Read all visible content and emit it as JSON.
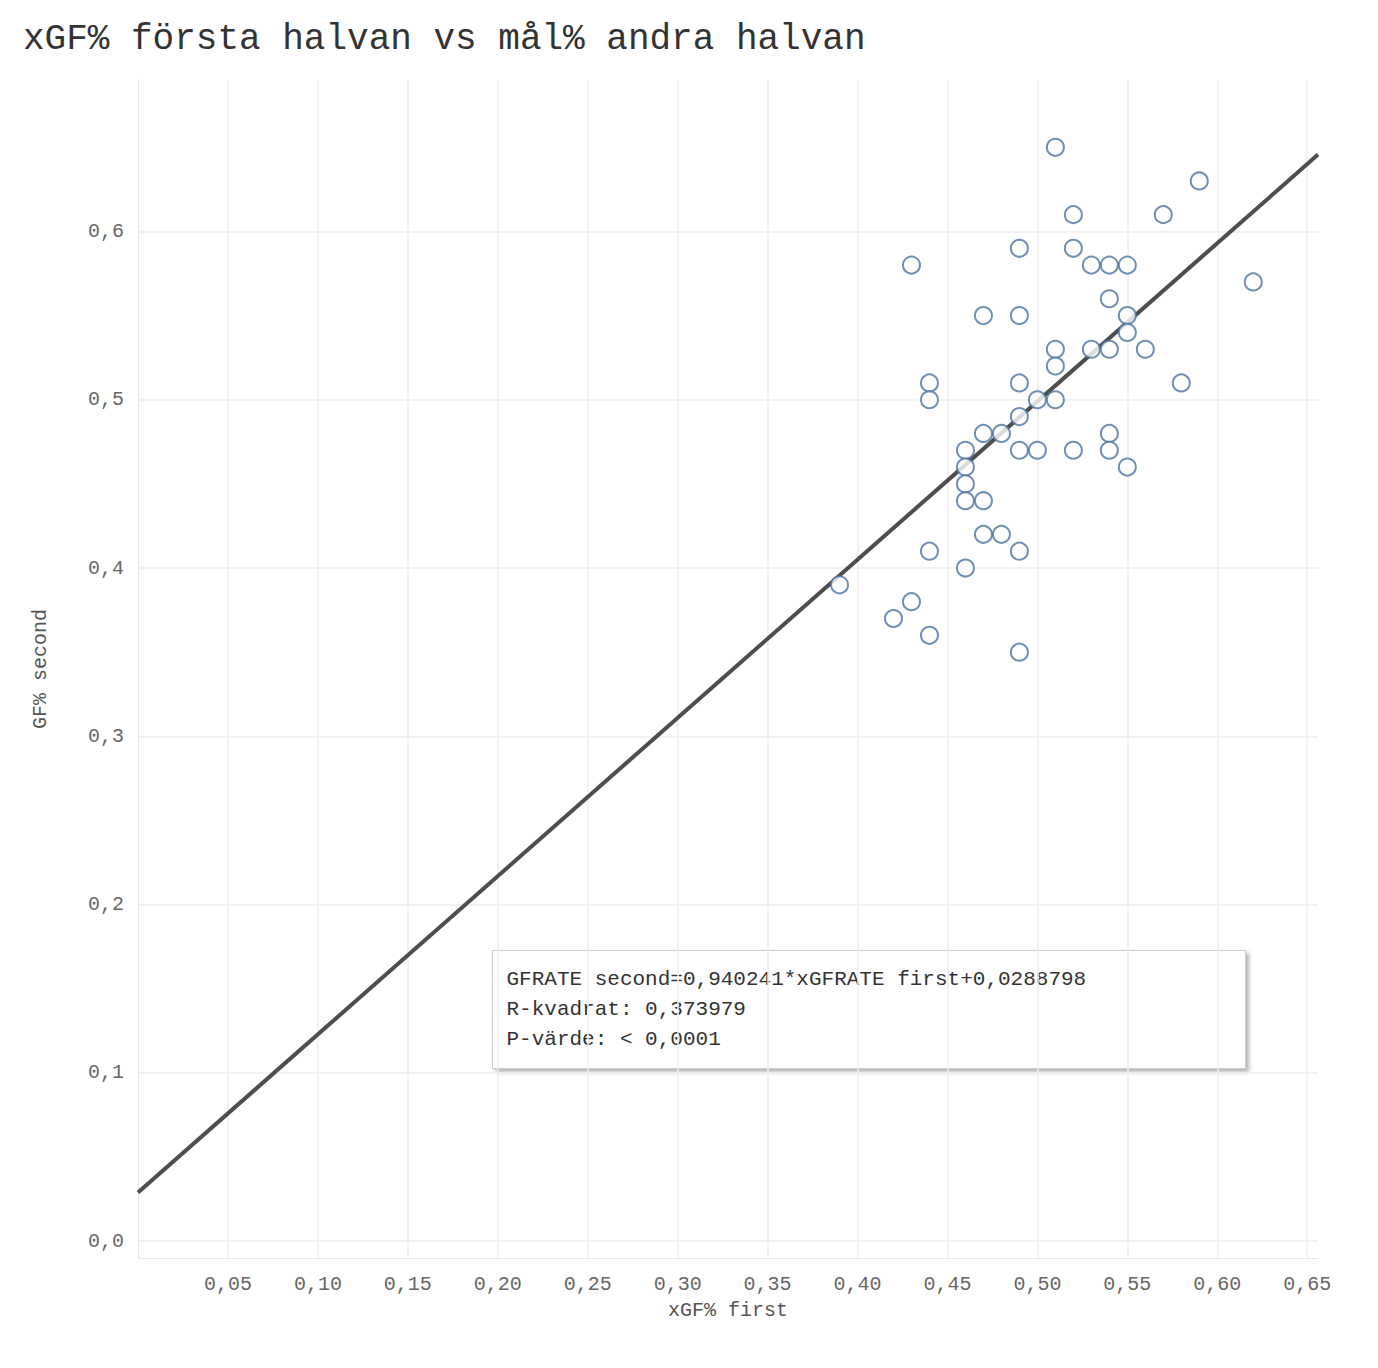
{
  "chart_data": {
    "type": "scatter",
    "title": "xGF% första halvan vs mål% andra halvan",
    "x_label": "xGF% first",
    "y_label": "GF% second",
    "x": [
      0.51,
      0.59,
      0.52,
      0.57,
      0.49,
      0.52,
      0.43,
      0.53,
      0.54,
      0.55,
      0.62,
      0.54,
      0.47,
      0.49,
      0.55,
      0.55,
      0.51,
      0.53,
      0.54,
      0.56,
      0.51,
      0.44,
      0.49,
      0.58,
      0.44,
      0.5,
      0.51,
      0.49,
      0.47,
      0.48,
      0.54,
      0.46,
      0.49,
      0.5,
      0.52,
      0.54,
      0.46,
      0.55,
      0.46,
      0.46,
      0.47,
      0.47,
      0.48,
      0.44,
      0.49,
      0.46,
      0.39,
      0.43,
      0.42,
      0.44,
      0.49
    ],
    "values": [
      0.65,
      0.63,
      0.61,
      0.61,
      0.59,
      0.59,
      0.58,
      0.58,
      0.58,
      0.58,
      0.57,
      0.56,
      0.55,
      0.55,
      0.55,
      0.54,
      0.53,
      0.53,
      0.53,
      0.53,
      0.52,
      0.51,
      0.51,
      0.51,
      0.5,
      0.5,
      0.5,
      0.49,
      0.48,
      0.48,
      0.48,
      0.47,
      0.47,
      0.47,
      0.47,
      0.47,
      0.46,
      0.46,
      0.45,
      0.44,
      0.44,
      0.42,
      0.42,
      0.41,
      0.41,
      0.4,
      0.39,
      0.38,
      0.37,
      0.36,
      0.35
    ],
    "color": "#4e73a3",
    "marker": "open circle",
    "regression": {
      "slope": 0.940241,
      "intercept": 0.0288798,
      "color": "#4d4d4d"
    },
    "annotation": [
      "GFRATE second=0,940241*xGFRATE first+0,0288798",
      "R-kvadrat: 0,373979",
      "P-värde: < 0,0001"
    ],
    "xlim": [
      0,
      0.656
    ],
    "ylim": [
      -0.01,
      0.69
    ],
    "xticks": [
      {
        "value": 0.05,
        "label": "0,05"
      },
      {
        "value": 0.1,
        "label": "0,10"
      },
      {
        "value": 0.15,
        "label": "0,15"
      },
      {
        "value": 0.2,
        "label": "0,20"
      },
      {
        "value": 0.25,
        "label": "0,25"
      },
      {
        "value": 0.3,
        "label": "0,30"
      },
      {
        "value": 0.35,
        "label": "0,35"
      },
      {
        "value": 0.4,
        "label": "0,40"
      },
      {
        "value": 0.45,
        "label": "0,45"
      },
      {
        "value": 0.5,
        "label": "0,50"
      },
      {
        "value": 0.55,
        "label": "0,55"
      },
      {
        "value": 0.6,
        "label": "0,60"
      },
      {
        "value": 0.65,
        "label": "0,65"
      }
    ],
    "yticks": [
      {
        "value": 0,
        "label": "0,0"
      },
      {
        "value": 0.1,
        "label": "0,1"
      },
      {
        "value": 0.2,
        "label": "0,2"
      },
      {
        "value": 0.3,
        "label": "0,3"
      },
      {
        "value": 0.4,
        "label": "0,4"
      },
      {
        "value": 0.5,
        "label": "0,5"
      },
      {
        "value": 0.6,
        "label": "0,6"
      }
    ],
    "grid": true,
    "legend": false
  }
}
